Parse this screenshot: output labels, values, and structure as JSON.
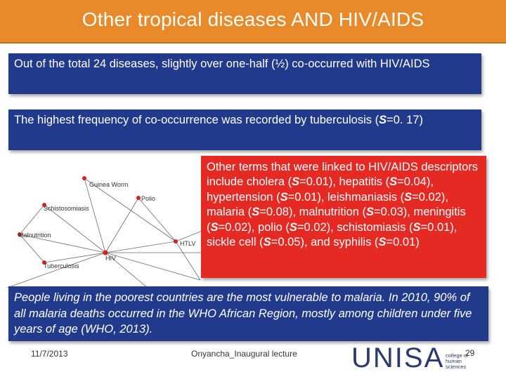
{
  "title": "Other tropical diseases AND HIV/AIDS",
  "box1_text": "Out of the total 24 diseases, slightly over one-half (½) co-occurred with HIV/AIDS",
  "box2": {
    "text_before": "The highest frequency of co-occurrence was recorded by tuberculosis (",
    "symbol": "S",
    "text_after": "=0. 17)"
  },
  "red_box": {
    "intro": "Other terms that were linked to HIV/AIDS descriptors include",
    "items": [
      {
        "name": "cholera",
        "value": "=0.01"
      },
      {
        "name": "hepatitis",
        "value": "=0.04"
      },
      {
        "name": "hypertension",
        "value": "=0.01"
      },
      {
        "name": "leishmaniasis",
        "value": "=0.02"
      },
      {
        "name": "malaria",
        "value": "=0.08"
      },
      {
        "name": "malnutrition",
        "value": "=0.03"
      },
      {
        "name": "meningitis",
        "value": "=0.02"
      },
      {
        "name": "polio",
        "value": "=0.02"
      },
      {
        "name": "schistomiasis",
        "value": "=0.01"
      },
      {
        "name": "sickle cell",
        "value": "=0.05"
      },
      {
        "name": "syphilis",
        "value": "=0.01"
      }
    ],
    "symbol": "S"
  },
  "box3_text": "People living in the poorest countries are the most vulnerable to malaria. In 2010, 90% of all malaria deaths occurred in the WHO African Region, mostly among children under five years of age (WHO, 2013).",
  "network_labels": {
    "guinea_worm": "Guinea Worm",
    "polio": "Polio",
    "schistosomiasis": "Schistosomiasis",
    "malnutrition": "Malnutrition",
    "hiv": "HIV",
    "htlv": "HTLV",
    "tuberculosis": "Tuberculosis"
  },
  "footer": {
    "date": "11/7/2013",
    "lecture": "Onyancha_Inaugural lecture",
    "page": "29"
  },
  "logo": {
    "name": "UNISA",
    "sub": "college of human sciences"
  },
  "colors": {
    "header": "#e8892a",
    "blue_box": "#223a8c",
    "red_box": "#e42a23"
  }
}
